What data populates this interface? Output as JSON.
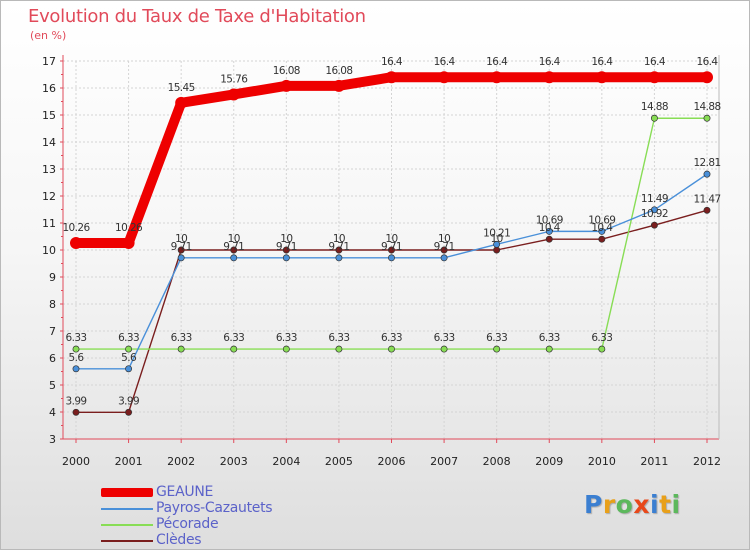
{
  "chart_data": {
    "type": "line",
    "title": "Evolution du Taux de Taxe d'Habitation",
    "subtitle": "(en %)",
    "xlabel": "",
    "ylabel": "",
    "categories": [
      "2000",
      "2001",
      "2002",
      "2003",
      "2004",
      "2005",
      "2006",
      "2007",
      "2008",
      "2009",
      "2010",
      "2011",
      "2012"
    ],
    "yticks": [
      3,
      4,
      5,
      6,
      7,
      8,
      9,
      10,
      11,
      12,
      13,
      14,
      15,
      16,
      17
    ],
    "ylim": [
      3,
      17
    ],
    "series": [
      {
        "name": "GEAUNE",
        "color": "#ee0000",
        "values": [
          10.26,
          10.26,
          15.45,
          15.76,
          16.08,
          16.08,
          16.4,
          16.4,
          16.4,
          16.4,
          16.4,
          16.4,
          16.4
        ],
        "labels": [
          "10.26",
          "10.26",
          "15.45",
          "15.76",
          "16.08",
          "16.08",
          "16.4",
          "16.4",
          "16.4",
          "16.4",
          "16.4",
          "16.4",
          "16.4"
        ]
      },
      {
        "name": "Payros-Cazautets",
        "color": "#4a90d9",
        "values": [
          5.6,
          5.6,
          9.71,
          9.71,
          9.71,
          9.71,
          9.71,
          9.71,
          10.21,
          10.69,
          10.69,
          11.49,
          12.81
        ],
        "labels": [
          "5.6",
          "5.6",
          "9.71",
          "9.71",
          "9.71",
          "9.71",
          "9.71",
          "9.71",
          "10.21",
          "10.69",
          "10.69",
          "11.49",
          "12.81"
        ]
      },
      {
        "name": "Pécorade",
        "color": "#88dd55",
        "values": [
          6.33,
          6.33,
          6.33,
          6.33,
          6.33,
          6.33,
          6.33,
          6.33,
          6.33,
          6.33,
          6.33,
          14.88,
          14.88
        ],
        "labels": [
          "6.33",
          "6.33",
          "6.33",
          "6.33",
          "6.33",
          "6.33",
          "6.33",
          "6.33",
          "6.33",
          "6.33",
          "6.33",
          "14.88",
          "14.88"
        ]
      },
      {
        "name": "Clèdes",
        "color": "#7a1e1e",
        "values": [
          3.99,
          3.99,
          10,
          10,
          10,
          10,
          10,
          10,
          10,
          10.4,
          10.4,
          10.92,
          11.47
        ],
        "labels": [
          "3.99",
          "3.99",
          "10",
          "10",
          "10",
          "10",
          "10",
          "10",
          "10",
          "10.4",
          "10.4",
          "10.92",
          "11.47"
        ]
      }
    ],
    "legend": [
      "GEAUNE",
      "Payros-Cazautets",
      "Pécorade",
      "Clèdes"
    ],
    "legend_position": "bottom-left"
  },
  "logo": {
    "letters": [
      "P",
      "r",
      "o",
      "x",
      "i",
      "t",
      "i"
    ],
    "colors": [
      "#3b7fd1",
      "#e8a01a",
      "#5cb85c",
      "#e8481a",
      "#3b7fd1",
      "#e8a01a",
      "#5cb85c"
    ]
  }
}
